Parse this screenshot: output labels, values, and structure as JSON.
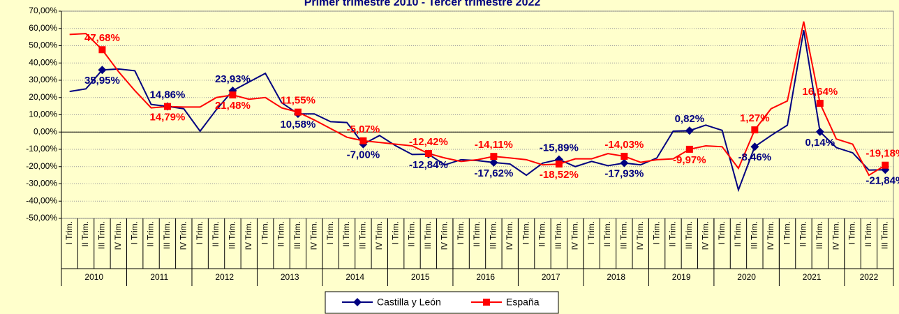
{
  "chart_data": {
    "type": "line",
    "title": "Primer trimestre 2010 - Tercer trimestre 2022",
    "categories": [
      "I Trim.",
      "II Trim.",
      "III Trim.",
      "IV Trim.",
      "I Trim.",
      "II Trim.",
      "III Trim.",
      "IV Trim.",
      "I Trim.",
      "II Trim.",
      "III Trim.",
      "IV Trim.",
      "I Trim.",
      "II Trim.",
      "III Trim.",
      "IV Trim.",
      "I Trim.",
      "II Trim.",
      "III Trim.",
      "IV Trim.",
      "I Trim.",
      "II Trim.",
      "III Trim.",
      "IV Trim.",
      "I Trim.",
      "II Trim.",
      "III Trim.",
      "IV Trim.",
      "I Trim.",
      "II Trim.",
      "III Trim.",
      "IV Trim.",
      "I Trim.",
      "II Trim.",
      "III Trim.",
      "IV Trim.",
      "I Trim.",
      "II Trim.",
      "III Trim.",
      "IV Trim.",
      "I Trim.",
      "II Trim.",
      "III Trim.",
      "IV Trim.",
      "I Trim.",
      "II Trim.",
      "III Trim.",
      "IV Trim.",
      "I Trim.",
      "II Trim.",
      "III Trim."
    ],
    "years": [
      "2010",
      "2011",
      "2012",
      "2013",
      "2014",
      "2015",
      "2016",
      "2017",
      "2018",
      "2019",
      "2020",
      "2021",
      "2022"
    ],
    "series": [
      {
        "name": "Castilla y León",
        "color": "#000080",
        "marker": "diamond",
        "values": [
          23.5,
          25,
          35.95,
          36.5,
          35.5,
          16,
          14.86,
          13.5,
          0.5,
          13,
          23.93,
          29,
          34,
          17,
          10.58,
          10.5,
          6,
          5.5,
          -7.0,
          -2,
          -8,
          -13,
          -12.84,
          -19,
          -16,
          -16.5,
          -17.62,
          -18.5,
          -25,
          -18,
          -15.89,
          -20,
          -17,
          -19.5,
          -17.93,
          -19,
          -15,
          0.5,
          0.82,
          4,
          1,
          -33.5,
          -8.46,
          -2,
          4,
          59,
          0.14,
          -9,
          -12,
          -22,
          -21.84
        ],
        "value_labels": [
          null,
          null,
          "35,95%",
          null,
          null,
          null,
          "14,86%",
          null,
          null,
          null,
          "23,93%",
          null,
          null,
          null,
          "10,58%",
          null,
          null,
          null,
          "-7,00%",
          null,
          null,
          null,
          "-12,84%",
          null,
          null,
          null,
          "-17,62%",
          null,
          null,
          null,
          "-15,89%",
          null,
          null,
          null,
          "-17,93%",
          null,
          null,
          null,
          "0,82%",
          null,
          null,
          null,
          "-8,46%",
          null,
          null,
          null,
          "0,14%",
          null,
          null,
          null,
          "-21,84%"
        ]
      },
      {
        "name": "España",
        "color": "#ff0000",
        "marker": "square",
        "values": [
          56.5,
          57,
          47.68,
          35,
          24,
          14,
          14.79,
          14.5,
          14.5,
          20,
          21.48,
          19,
          20,
          14,
          11.55,
          7,
          2,
          -3,
          -5.07,
          -6,
          -7,
          -8,
          -12.42,
          -15,
          -17,
          -16,
          -14.11,
          -15,
          -16,
          -19,
          -18.52,
          -15.5,
          -15.5,
          -12.5,
          -14.03,
          -17.5,
          -16,
          -15.5,
          -9.97,
          -8,
          -8.5,
          -21,
          1.27,
          13.5,
          18,
          64,
          16.64,
          -4,
          -7,
          -25,
          -19.18
        ],
        "value_labels": [
          null,
          null,
          "47,68%",
          null,
          null,
          null,
          "14,79%",
          null,
          null,
          null,
          "21,48%",
          null,
          null,
          null,
          "11,55%",
          null,
          null,
          null,
          "-5,07%",
          null,
          null,
          null,
          "-12,42%",
          null,
          null,
          null,
          "-14,11%",
          null,
          null,
          null,
          "-18,52%",
          null,
          null,
          null,
          "-14,03%",
          null,
          null,
          null,
          "-9,97%",
          null,
          null,
          null,
          "1,27%",
          null,
          null,
          null,
          "16,64%",
          null,
          null,
          null,
          "-19,18%"
        ]
      }
    ],
    "ylim": [
      -50,
      70
    ],
    "yticks": [
      {
        "value": -50,
        "label": "-50,00%"
      },
      {
        "value": -40,
        "label": "-40,00%"
      },
      {
        "value": -30,
        "label": "-30,00%"
      },
      {
        "value": -20,
        "label": "-20,00%"
      },
      {
        "value": -10,
        "label": "-10,00%"
      },
      {
        "value": 0,
        "label": "0,00%"
      },
      {
        "value": 10,
        "label": "10,00%"
      },
      {
        "value": 20,
        "label": "20,00%"
      },
      {
        "value": 30,
        "label": "30,00%"
      },
      {
        "value": 40,
        "label": "40,00%"
      },
      {
        "value": 50,
        "label": "50,00%"
      },
      {
        "value": 60,
        "label": "60,00%"
      },
      {
        "value": 70,
        "label": "70,00%"
      }
    ],
    "grid": true,
    "legend": "bottom"
  }
}
